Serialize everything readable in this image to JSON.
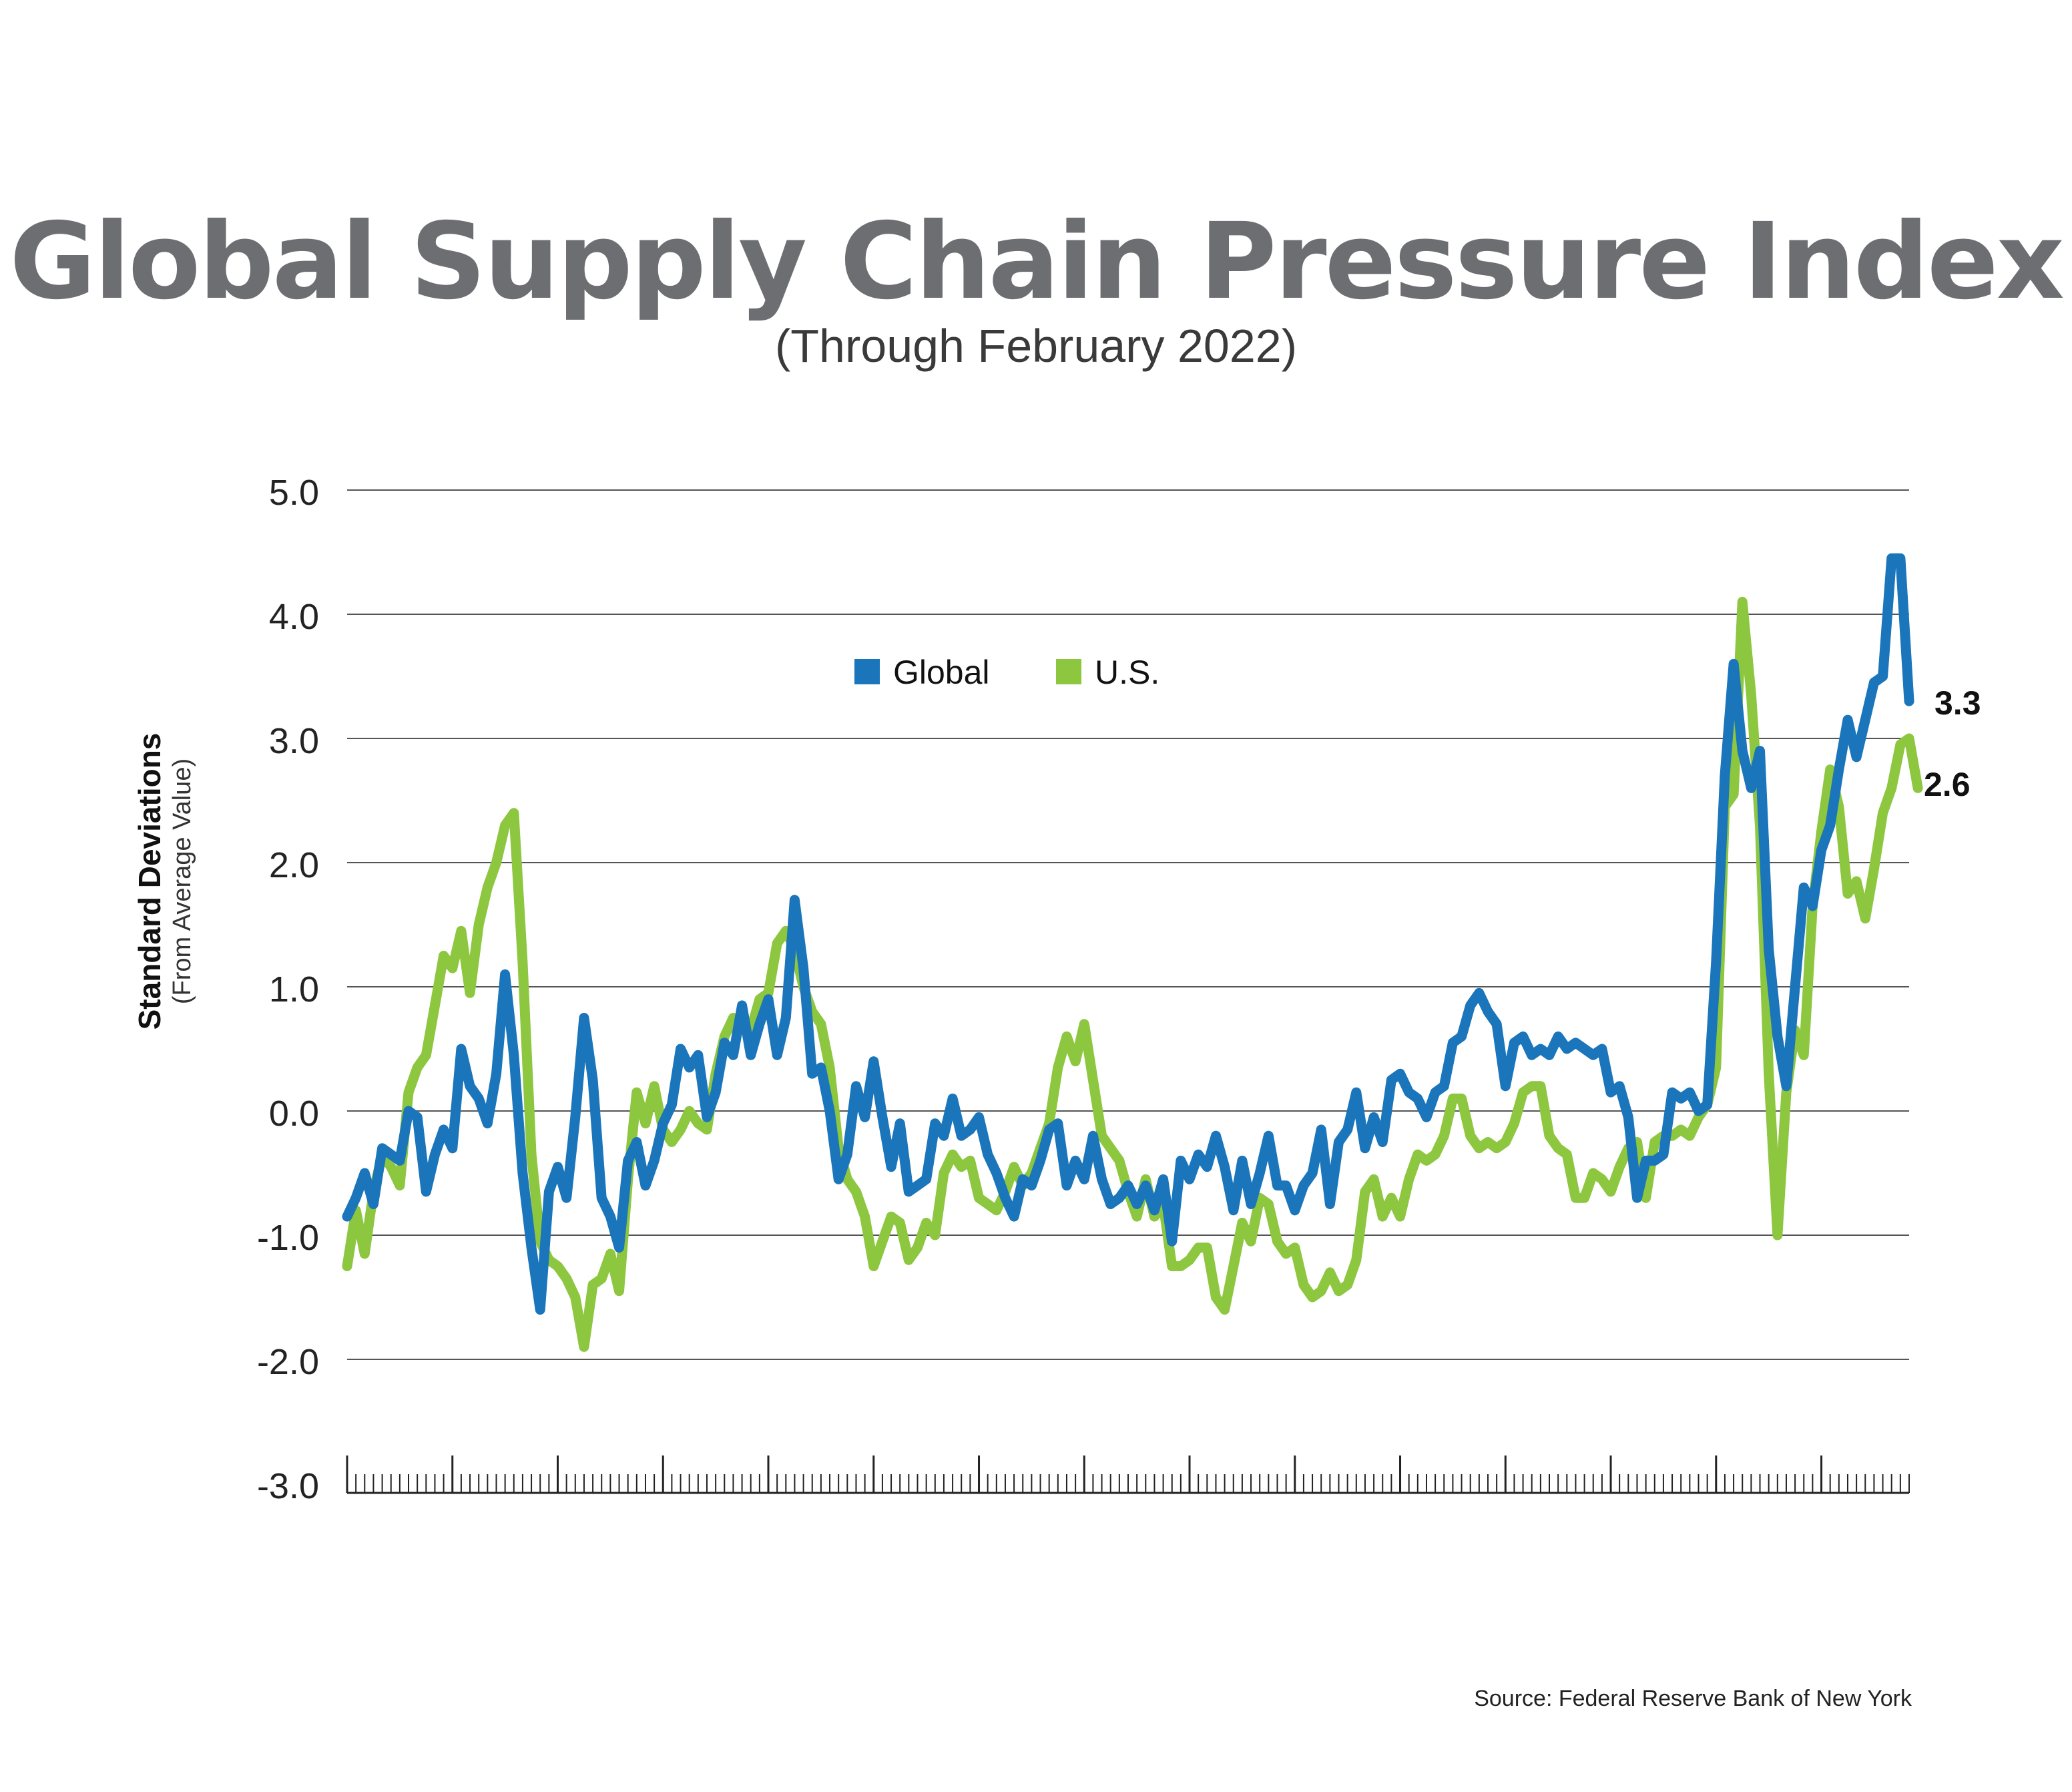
{
  "title": "Global Supply Chain Pressure Index",
  "subtitle": "(Through February 2022)",
  "source": "Source: Federal Reserve Bank of New York",
  "chart_data": {
    "type": "line",
    "ylabel": "Standard Deviations",
    "ylabel_sub": "(From Average Value)",
    "ylim": [
      -3.0,
      5.0
    ],
    "yticks": [
      "5.0",
      "4.0",
      "3.0",
      "2.0",
      "1.0",
      "0.0",
      "-1.0",
      "-2.0",
      "-3.0"
    ],
    "grid": true,
    "legend_position": "top-center",
    "end_labels": {
      "global": "3.3",
      "us": "2.6"
    },
    "series": [
      {
        "name": "Global",
        "color": "#1a75bb",
        "values": [
          -0.85,
          -0.7,
          -0.5,
          -0.75,
          -0.3,
          -0.35,
          -0.4,
          0.0,
          -0.05,
          -0.65,
          -0.35,
          -0.15,
          -0.3,
          0.5,
          0.2,
          0.1,
          -0.1,
          0.3,
          1.1,
          0.45,
          -0.5,
          -1.1,
          -1.6,
          -0.65,
          -0.45,
          -0.7,
          -0.05,
          0.75,
          0.25,
          -0.7,
          -0.85,
          -1.1,
          -0.4,
          -0.25,
          -0.6,
          -0.4,
          -0.1,
          0.05,
          0.5,
          0.35,
          0.45,
          -0.05,
          0.15,
          0.55,
          0.45,
          0.85,
          0.45,
          0.7,
          0.9,
          0.45,
          0.75,
          1.7,
          1.15,
          0.3,
          0.35,
          0.0,
          -0.55,
          -0.35,
          0.2,
          -0.05,
          0.4,
          -0.05,
          -0.45,
          -0.1,
          -0.65,
          -0.6,
          -0.55,
          -0.1,
          -0.2,
          0.1,
          -0.2,
          -0.15,
          -0.05,
          -0.35,
          -0.5,
          -0.7,
          -0.85,
          -0.55,
          -0.6,
          -0.4,
          -0.15,
          -0.1,
          -0.6,
          -0.4,
          -0.55,
          -0.2,
          -0.55,
          -0.75,
          -0.7,
          -0.6,
          -0.75,
          -0.6,
          -0.8,
          -0.55,
          -1.05,
          -0.4,
          -0.55,
          -0.35,
          -0.45,
          -0.2,
          -0.45,
          -0.8,
          -0.4,
          -0.75,
          -0.5,
          -0.2,
          -0.6,
          -0.6,
          -0.8,
          -0.6,
          -0.5,
          -0.15,
          -0.75,
          -0.25,
          -0.15,
          0.15,
          -0.3,
          -0.05,
          -0.25,
          0.25,
          0.3,
          0.15,
          0.1,
          -0.05,
          0.15,
          0.2,
          0.55,
          0.6,
          0.85,
          0.95,
          0.8,
          0.7,
          0.2,
          0.55,
          0.6,
          0.45,
          0.5,
          0.45,
          0.6,
          0.5,
          0.55,
          0.5,
          0.45,
          0.5,
          0.15,
          0.2,
          -0.05,
          -0.7,
          -0.4,
          -0.4,
          -0.35,
          0.15,
          0.1,
          0.15,
          0.0,
          0.05,
          1.2,
          2.7,
          3.6,
          2.9,
          2.6,
          2.9,
          1.3,
          0.6,
          0.2,
          1.0,
          1.8,
          1.65,
          2.1,
          2.3,
          2.75,
          3.15,
          2.85,
          3.15,
          3.45,
          3.5,
          4.45,
          4.45,
          3.3
        ]
      },
      {
        "name": "U.S.",
        "color": "#8dc63f",
        "values": [
          -1.25,
          -0.8,
          -1.15,
          -0.65,
          -0.35,
          -0.45,
          -0.6,
          0.15,
          0.35,
          0.45,
          0.85,
          1.25,
          1.15,
          1.45,
          0.95,
          1.5,
          1.8,
          2.0,
          2.3,
          2.4,
          1.2,
          -0.35,
          -1.05,
          -1.2,
          -1.25,
          -1.35,
          -1.5,
          -1.9,
          -1.4,
          -1.35,
          -1.15,
          -1.45,
          -0.55,
          0.15,
          -0.1,
          0.2,
          -0.15,
          -0.25,
          -0.15,
          0.0,
          -0.1,
          -0.15,
          0.3,
          0.6,
          0.75,
          0.7,
          0.65,
          0.9,
          0.95,
          1.35,
          1.45,
          1.3,
          1.0,
          0.8,
          0.7,
          0.35,
          -0.3,
          -0.55,
          -0.65,
          -0.85,
          -1.25,
          -1.05,
          -0.85,
          -0.9,
          -1.2,
          -1.1,
          -0.9,
          -1.0,
          -0.5,
          -0.35,
          -0.45,
          -0.4,
          -0.7,
          -0.75,
          -0.8,
          -0.65,
          -0.45,
          -0.6,
          -0.5,
          -0.3,
          -0.1,
          0.35,
          0.6,
          0.4,
          0.7,
          0.25,
          -0.2,
          -0.3,
          -0.4,
          -0.65,
          -0.85,
          -0.55,
          -0.85,
          -0.75,
          -1.25,
          -1.25,
          -1.2,
          -1.1,
          -1.1,
          -1.5,
          -1.6,
          -1.25,
          -0.9,
          -1.05,
          -0.7,
          -0.75,
          -1.05,
          -1.15,
          -1.1,
          -1.4,
          -1.5,
          -1.45,
          -1.3,
          -1.45,
          -1.4,
          -1.2,
          -0.65,
          -0.55,
          -0.85,
          -0.7,
          -0.85,
          -0.55,
          -0.35,
          -0.4,
          -0.35,
          -0.2,
          0.1,
          0.1,
          -0.2,
          -0.3,
          -0.25,
          -0.3,
          -0.25,
          -0.1,
          0.15,
          0.2,
          0.2,
          -0.2,
          -0.3,
          -0.35,
          -0.7,
          -0.7,
          -0.5,
          -0.55,
          -0.65,
          -0.45,
          -0.3,
          -0.25,
          -0.7,
          -0.25,
          -0.2,
          -0.2,
          -0.15,
          -0.2,
          -0.05,
          0.05,
          0.35,
          2.45,
          2.55,
          4.1,
          3.35,
          2.3,
          0.3,
          -1.0,
          0.15,
          0.65,
          0.45,
          1.65,
          2.25,
          2.75,
          2.45,
          1.75,
          1.85,
          1.55,
          1.95,
          2.4,
          2.6,
          2.95,
          3.0,
          2.6
        ]
      }
    ]
  }
}
